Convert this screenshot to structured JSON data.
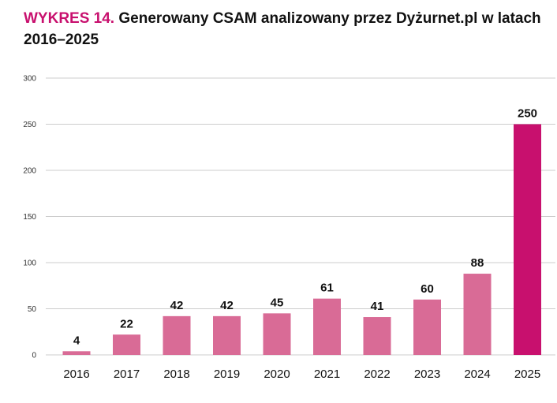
{
  "header": {
    "title_prefix": "WYKRES 14.",
    "title_text": "Generowany CSAM analizowany przez Dyżurnet.pl w latach 2016–2025"
  },
  "colors": {
    "accent": "#c8106e",
    "bar": "#d96b96",
    "highlight": "#c8106e",
    "grid": "#cccccc"
  },
  "chart_data": {
    "type": "bar",
    "categories": [
      "2016",
      "2017",
      "2018",
      "2019",
      "2020",
      "2021",
      "2022",
      "2023",
      "2024",
      "2025"
    ],
    "values": [
      4,
      22,
      42,
      42,
      45,
      61,
      41,
      60,
      88,
      250
    ],
    "highlight_index": 9,
    "title": "Generowany CSAM analizowany przez Dyżurnet.pl w latach 2016–2025",
    "xlabel": "",
    "ylabel": "",
    "ylim": [
      0,
      300
    ],
    "yticks": [
      0,
      50,
      100,
      150,
      200,
      250,
      300
    ],
    "grid": true,
    "data_labels": true
  }
}
